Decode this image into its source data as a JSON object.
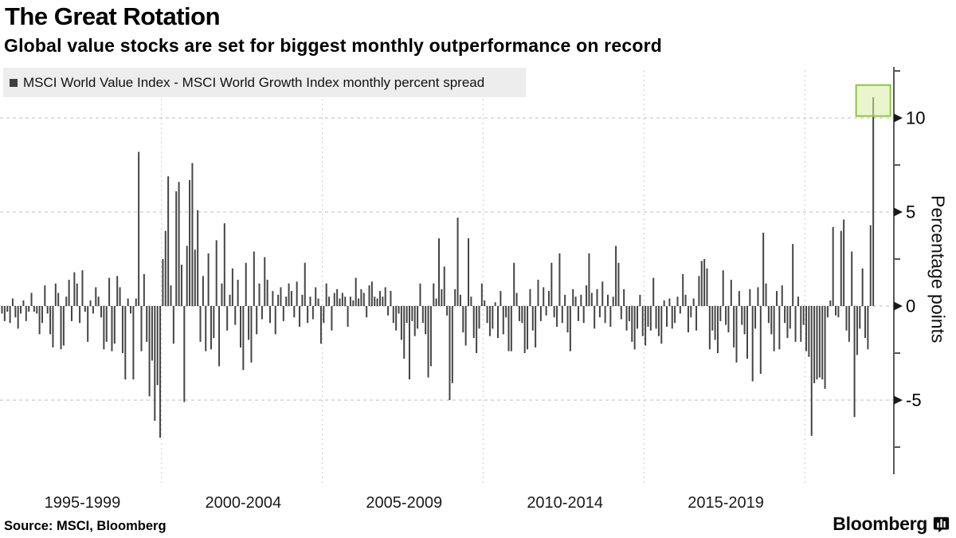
{
  "header": {
    "title": "The Great Rotation",
    "subtitle": "Global value stocks are set for biggest monthly outperformance on record"
  },
  "legend": {
    "marker_color": "#3f3f3f",
    "label": "MSCI World Value Index - MSCI World Growth Index monthly percent spread"
  },
  "source": {
    "label": "Source: MSCI, Bloomberg"
  },
  "branding": {
    "logo_text": "Bloomberg",
    "logo_icon": "bloomberg-chart-bubble-icon"
  },
  "chart_data": {
    "type": "bar",
    "title": "The Great Rotation",
    "series_name": "MSCI World Value Index - MSCI World Growth Index monthly percent spread",
    "frequency": "monthly",
    "start_month": "1995-01",
    "end_month": "2022-02",
    "bar_color": "#454545",
    "grid": "dashed",
    "x_tick_labels": [
      "1995-1999",
      "2000-2004",
      "2005-2009",
      "2010-2014",
      "2015-2019"
    ],
    "y_axis": {
      "label": "Percentage points",
      "side": "right",
      "ticks": [
        10,
        5,
        0,
        -5
      ],
      "tick_labels": [
        "10",
        "5",
        "0",
        "-5"
      ],
      "minor_ticks": [
        12.5,
        7.5,
        2.5,
        -2.5,
        -7.5
      ],
      "range": [
        -8.8,
        12.8
      ]
    },
    "highlight": {
      "target": "last_bar_top",
      "value": 11.1,
      "fill": "#d9eda6",
      "border": "#8cc63f",
      "meaning": "record monthly outperformance"
    },
    "values": [
      -0.4,
      -0.8,
      -0.3,
      -0.9,
      0.4,
      -0.6,
      -1.2,
      -0.4,
      0.3,
      -0.8,
      -0.3,
      0.7,
      -0.3,
      -0.4,
      -1.5,
      -0.9,
      1.1,
      -0.4,
      -1.5,
      -2.2,
      1.2,
      0.7,
      -2.3,
      -2.1,
      0.5,
      1.4,
      -0.8,
      1.8,
      1.2,
      -0.9,
      1.9,
      -0.3,
      -1.9,
      0.3,
      -0.4,
      1.0,
      0.5,
      -0.6,
      -2.3,
      -1.9,
      1.5,
      -2.4,
      -2.0,
      1.6,
      1.0,
      -2.5,
      -3.9,
      0.4,
      -0.4,
      -3.9,
      0.4,
      8.2,
      -2.4,
      1.7,
      -1.9,
      -4.8,
      -2.9,
      -6.1,
      -4.2,
      -7.0,
      2.5,
      4.0,
      6.9,
      1.1,
      -2.0,
      6.1,
      6.6,
      2.2,
      -5.1,
      3.2,
      6.7,
      7.6,
      3.0,
      5.1,
      -1.9,
      1.6,
      -2.4,
      2.8,
      -2.3,
      -1.7,
      3.5,
      -3.2,
      1.2,
      4.4,
      -1.3,
      0.6,
      2.0,
      -1.0,
      1.4,
      -2.2,
      -3.4,
      2.3,
      -1.8,
      -3.0,
      2.9,
      -1.5,
      1.2,
      -0.7,
      2.6,
      1.4,
      -0.9,
      0.8,
      -1.5,
      0.6,
      1.0,
      -0.8,
      0.5,
      1.2,
      0.8,
      -0.6,
      1.3,
      -1.1,
      0.6,
      2.3,
      -0.9,
      0.5,
      -0.7,
      1.0,
      0.4,
      -2.0,
      -0.9,
      1.2,
      0.5,
      -1.3,
      0.7,
      0.9,
      0.4,
      0.7,
      0.5,
      -1.1,
      0.5,
      0.3,
      1.5,
      0.4,
      0.9,
      0.7,
      -0.6,
      1.1,
      1.3,
      0.5,
      0.4,
      0.8,
      0.5,
      1.0,
      -0.5,
      0.8,
      -0.9,
      -1.3,
      -0.4,
      -1.8,
      -2.8,
      -0.9,
      -3.9,
      -0.8,
      -1.6,
      -1.2,
      1.2,
      -0.9,
      -1.5,
      -3.8,
      -3.2,
      1.2,
      0.4,
      3.6,
      0.9,
      2.1,
      -0.5,
      -5.0,
      -4.1,
      0.9,
      4.7,
      0.6,
      -1.4,
      -2.1,
      3.6,
      0.5,
      -1.7,
      -2.5,
      -1.2,
      1.2,
      0.3,
      -0.9,
      -1.6,
      -1.2,
      0.2,
      -1.7,
      0.8,
      -1.5,
      -0.6,
      -2.4,
      -2.4,
      2.3,
      0.7,
      -0.8,
      -0.9,
      -2.5,
      -2.3,
      0.9,
      -1.3,
      -2.2,
      1.4,
      -0.8,
      1.0,
      -0.5,
      0.8,
      2.3,
      -0.6,
      -1.1,
      2.8,
      -0.9,
      0.6,
      -1.4,
      -2.4,
      0.9,
      0.5,
      -0.8,
      0.6,
      -0.9,
      1.1,
      2.8,
      0.7,
      -1.2,
      0.9,
      -0.6,
      1.3,
      -0.9,
      0.6,
      -1.1,
      0.5,
      3.2,
      2.3,
      -0.7,
      0.9,
      -1.3,
      -0.8,
      -1.9,
      -2.3,
      -1.2,
      0.6,
      -1.6,
      -2.1,
      -1.1,
      -1.3,
      1.5,
      -1.2,
      -1.6,
      -2.0,
      0.3,
      -1.1,
      0.4,
      -1.2,
      -0.9,
      0.5,
      -0.4,
      1.7,
      0.6,
      -1.4,
      -0.6,
      0.4,
      -1.3,
      1.6,
      2.4,
      2.5,
      2.0,
      -2.3,
      -1.3,
      -1.8,
      -2.5,
      -0.8,
      1.9,
      -1.0,
      -1.4,
      1.4,
      -2.2,
      -3.0,
      0.8,
      -1.0,
      -1.5,
      -2.8,
      0.9,
      -4.0,
      -1.2,
      1.0,
      -3.6,
      3.9,
      1.2,
      -0.9,
      -1.5,
      -2.4,
      0.8,
      -2.3,
      1.1,
      -0.9,
      -1.7,
      -1.2,
      3.3,
      -1.9,
      0.5,
      -1.9,
      -1.0,
      -2.4,
      -2.7,
      -6.9,
      -4.1,
      -3.9,
      -3.8,
      -3.9,
      -4.4,
      -0.6,
      0.3,
      4.2,
      -0.5,
      -0.6,
      4.0,
      4.6,
      -1.3,
      -1.9,
      2.9,
      -5.9,
      -2.6,
      -1.2,
      2.0,
      -1.7,
      -2.3,
      4.3,
      11.1
    ]
  }
}
